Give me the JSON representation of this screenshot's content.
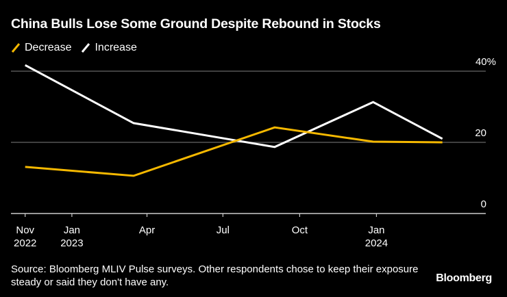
{
  "chart_data": {
    "type": "line",
    "title": "China Bulls Lose Some Ground Despite Rebound in Stocks",
    "xlabel": "",
    "ylabel": "",
    "ylim": [
      0,
      40
    ],
    "y_ticks": [
      {
        "value": 40,
        "label": "40%"
      },
      {
        "value": 20,
        "label": "20"
      },
      {
        "value": 0,
        "label": "0"
      }
    ],
    "x_ticks": [
      {
        "date": "2022-11-06",
        "label": "Nov",
        "sublabel": "2022"
      },
      {
        "date": "2023-01-01",
        "label": "Jan",
        "sublabel": "2023"
      },
      {
        "date": "2023-04-01",
        "label": "Apr",
        "sublabel": ""
      },
      {
        "date": "2023-07-01",
        "label": "Jul",
        "sublabel": ""
      },
      {
        "date": "2023-10-01",
        "label": "Oct",
        "sublabel": ""
      },
      {
        "date": "2024-01-01",
        "label": "Jan",
        "sublabel": "2024"
      }
    ],
    "xlim": [
      "2022-10-20",
      "2024-05-11"
    ],
    "x": [
      "2022-11-06",
      "2023-03-16",
      "2023-09-01",
      "2023-12-28",
      "2024-03-20"
    ],
    "series": [
      {
        "name": "Decrease",
        "color": "#F5B800",
        "values": [
          13.1,
          10.6,
          24.2,
          20.2,
          20.0
        ]
      },
      {
        "name": "Increase",
        "color": "#FFFFFF",
        "values": [
          41.7,
          25.4,
          18.7,
          31.3,
          21.0
        ]
      }
    ],
    "grid": true,
    "legend": "top-left"
  },
  "legend": [
    {
      "label": "Decrease",
      "color": "#F5B800"
    },
    {
      "label": "Increase",
      "color": "#FFFFFF"
    }
  ],
  "source": "Source: Bloomberg MLIV Pulse surveys. Other respondents chose to keep their exposure steady or said they don't have any.",
  "logo": "Bloomberg",
  "colors": {
    "background": "#000000",
    "gridline": "#555555",
    "axis": "#CCCCCC"
  }
}
